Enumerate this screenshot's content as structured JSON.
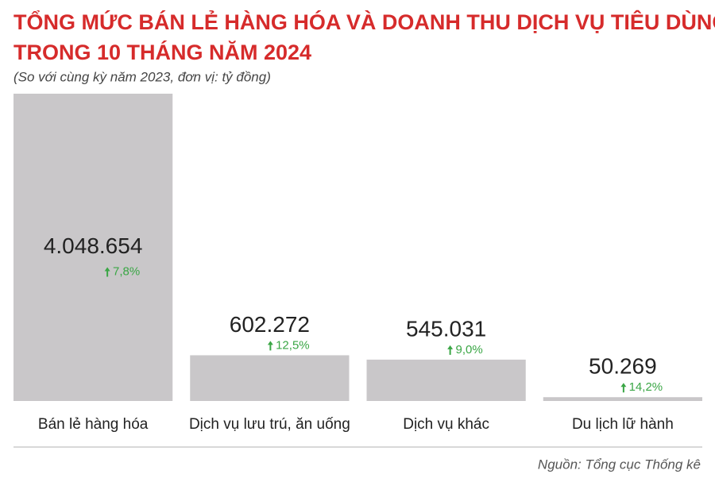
{
  "chart_data": {
    "type": "bar",
    "title": [
      "TỔNG MỨC BÁN LẺ HÀNG HÓA VÀ DOANH THU DỊCH VỤ TIÊU DÙNG",
      "TRONG 10 THÁNG NĂM 2024"
    ],
    "subtitle": "(So với cùng kỳ năm 2023, đơn vị: tỷ đồng)",
    "categories": [
      "Bán lẻ hàng hóa",
      "Dịch vụ lưu trú, ăn uống",
      "Dịch vụ khác",
      "Du lịch lữ hành"
    ],
    "values": [
      4048654,
      602272,
      545031,
      50269
    ],
    "value_labels": [
      "4.048.654",
      "602.272",
      "545.031",
      "50.269"
    ],
    "growth_labels": [
      "7,8%",
      "12,5%",
      "9,0%",
      "14,2%"
    ],
    "color": "#c9c7c9",
    "source": "Nguồn: Tổng cục Thống kê"
  }
}
